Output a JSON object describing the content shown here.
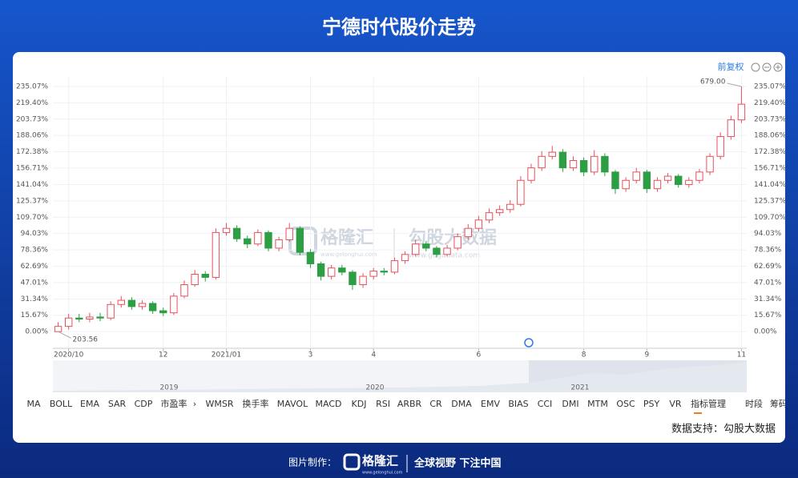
{
  "header": {
    "title": "宁德时代股价走势"
  },
  "toolbar": {
    "adjust": "前复权",
    "indicators": [
      "MA",
      "BOLL",
      "EMA",
      "SAR",
      "CDP",
      "市盈率",
      "WMSR",
      "换手率",
      "MAVOL",
      "MACD",
      "KDJ",
      "RSI",
      "ARBR",
      "CR",
      "DMA",
      "EMV",
      "BIAS",
      "CCI",
      "DMI",
      "MTM",
      "OSC",
      "PSY",
      "VR",
      "指标管理",
      "时段",
      "筹码"
    ]
  },
  "chart_data": {
    "type": "candlestick",
    "categories": [
      null,
      "2020/10",
      null,
      null,
      null,
      null,
      null,
      null,
      null,
      null,
      "12",
      null,
      null,
      null,
      null,
      null,
      "2021/01",
      null,
      null,
      null,
      null,
      null,
      null,
      null,
      "3",
      null,
      null,
      null,
      null,
      null,
      "4",
      null,
      null,
      null,
      null,
      null,
      null,
      null,
      null,
      null,
      "6",
      null,
      null,
      null,
      null,
      null,
      null,
      null,
      null,
      null,
      "8",
      null,
      null,
      null,
      null,
      null,
      "9",
      null,
      null,
      null,
      null,
      null,
      null,
      null,
      null,
      "11"
    ],
    "open": [
      0,
      5,
      13,
      12,
      14,
      13,
      26,
      30,
      24,
      27,
      20,
      18,
      34,
      45,
      55,
      52,
      95,
      99,
      89,
      84,
      95,
      80,
      88,
      99,
      76,
      65,
      53,
      61,
      57,
      45,
      53,
      58,
      57,
      68,
      74,
      84,
      80,
      74,
      80,
      91,
      99,
      107,
      114,
      117,
      122,
      145,
      157,
      168,
      172,
      157,
      164,
      153,
      168,
      153,
      137,
      145,
      153,
      137,
      145,
      149,
      141,
      145,
      153,
      168,
      187,
      203
    ],
    "high": [
      9,
      17,
      17,
      18,
      18,
      29,
      34,
      33,
      30,
      29,
      23,
      37,
      49,
      59,
      58,
      99,
      104,
      102,
      92,
      98,
      97,
      91,
      104,
      101,
      79,
      67,
      64,
      64,
      59,
      56,
      61,
      61,
      71,
      77,
      88,
      87,
      82,
      83,
      94,
      103,
      111,
      118,
      121,
      126,
      149,
      161,
      173,
      178,
      175,
      168,
      167,
      174,
      171,
      155,
      148,
      157,
      155,
      148,
      152,
      151,
      148,
      156,
      171,
      191,
      207,
      235
    ],
    "low": [
      0,
      2,
      9,
      9,
      10,
      11,
      23,
      21,
      21,
      17,
      15,
      16,
      32,
      43,
      48,
      50,
      92,
      86,
      80,
      82,
      77,
      77,
      86,
      73,
      61,
      49,
      50,
      54,
      40,
      42,
      50,
      54,
      55,
      65,
      72,
      77,
      71,
      72,
      78,
      88,
      96,
      104,
      111,
      114,
      120,
      142,
      154,
      165,
      153,
      154,
      149,
      150,
      149,
      132,
      134,
      142,
      133,
      134,
      142,
      138,
      138,
      142,
      150,
      165,
      184,
      200
    ],
    "close": [
      5,
      13,
      12,
      14,
      13,
      26,
      30,
      24,
      27,
      20,
      18,
      34,
      45,
      55,
      52,
      95,
      99,
      89,
      84,
      95,
      80,
      88,
      99,
      76,
      65,
      53,
      61,
      57,
      45,
      53,
      58,
      57,
      68,
      74,
      84,
      80,
      74,
      80,
      91,
      99,
      107,
      114,
      117,
      122,
      145,
      157,
      168,
      172,
      157,
      164,
      153,
      168,
      153,
      137,
      145,
      153,
      137,
      145,
      149,
      141,
      145,
      153,
      168,
      187,
      203,
      218
    ],
    "up_color": "#e8505b",
    "down_color": "#2e9e44",
    "ylim": [
      -16,
      245
    ],
    "yticks": [
      {
        "value": 0,
        "label": "0.00%"
      },
      {
        "value": 15.67,
        "label": "15.67%"
      },
      {
        "value": 31.34,
        "label": "31.34%"
      },
      {
        "value": 47.01,
        "label": "47.01%"
      },
      {
        "value": 62.69,
        "label": "62.69%"
      },
      {
        "value": 78.36,
        "label": "78.36%"
      },
      {
        "value": 94.03,
        "label": "94.03%"
      },
      {
        "value": 109.7,
        "label": "109.70%"
      },
      {
        "value": 125.37,
        "label": "125.37%"
      },
      {
        "value": 141.04,
        "label": "141.04%"
      },
      {
        "value": 156.71,
        "label": "156.71%"
      },
      {
        "value": 172.38,
        "label": "172.38%"
      },
      {
        "value": 188.06,
        "label": "188.06%"
      },
      {
        "value": 203.73,
        "label": "203.73%"
      },
      {
        "value": 219.4,
        "label": "219.40%"
      },
      {
        "value": 235.07,
        "label": "235.07%"
      }
    ],
    "grid": true,
    "annotations": [
      "679.00",
      "203.56"
    ]
  },
  "navigator": {
    "labels": [
      "2019",
      "2020",
      "2021"
    ]
  },
  "source": "数据支持：勾股大数据",
  "watermark": {
    "brand1": "格隆汇",
    "url1": "www.gelonghui.com",
    "brand2": "勾股大数据",
    "url2": "www.gogudata.com"
  },
  "footer": {
    "label": "图片制作：",
    "brand": "格隆汇",
    "url": "www.gelonghui.com",
    "slogan": "全球视野 下注中国"
  }
}
